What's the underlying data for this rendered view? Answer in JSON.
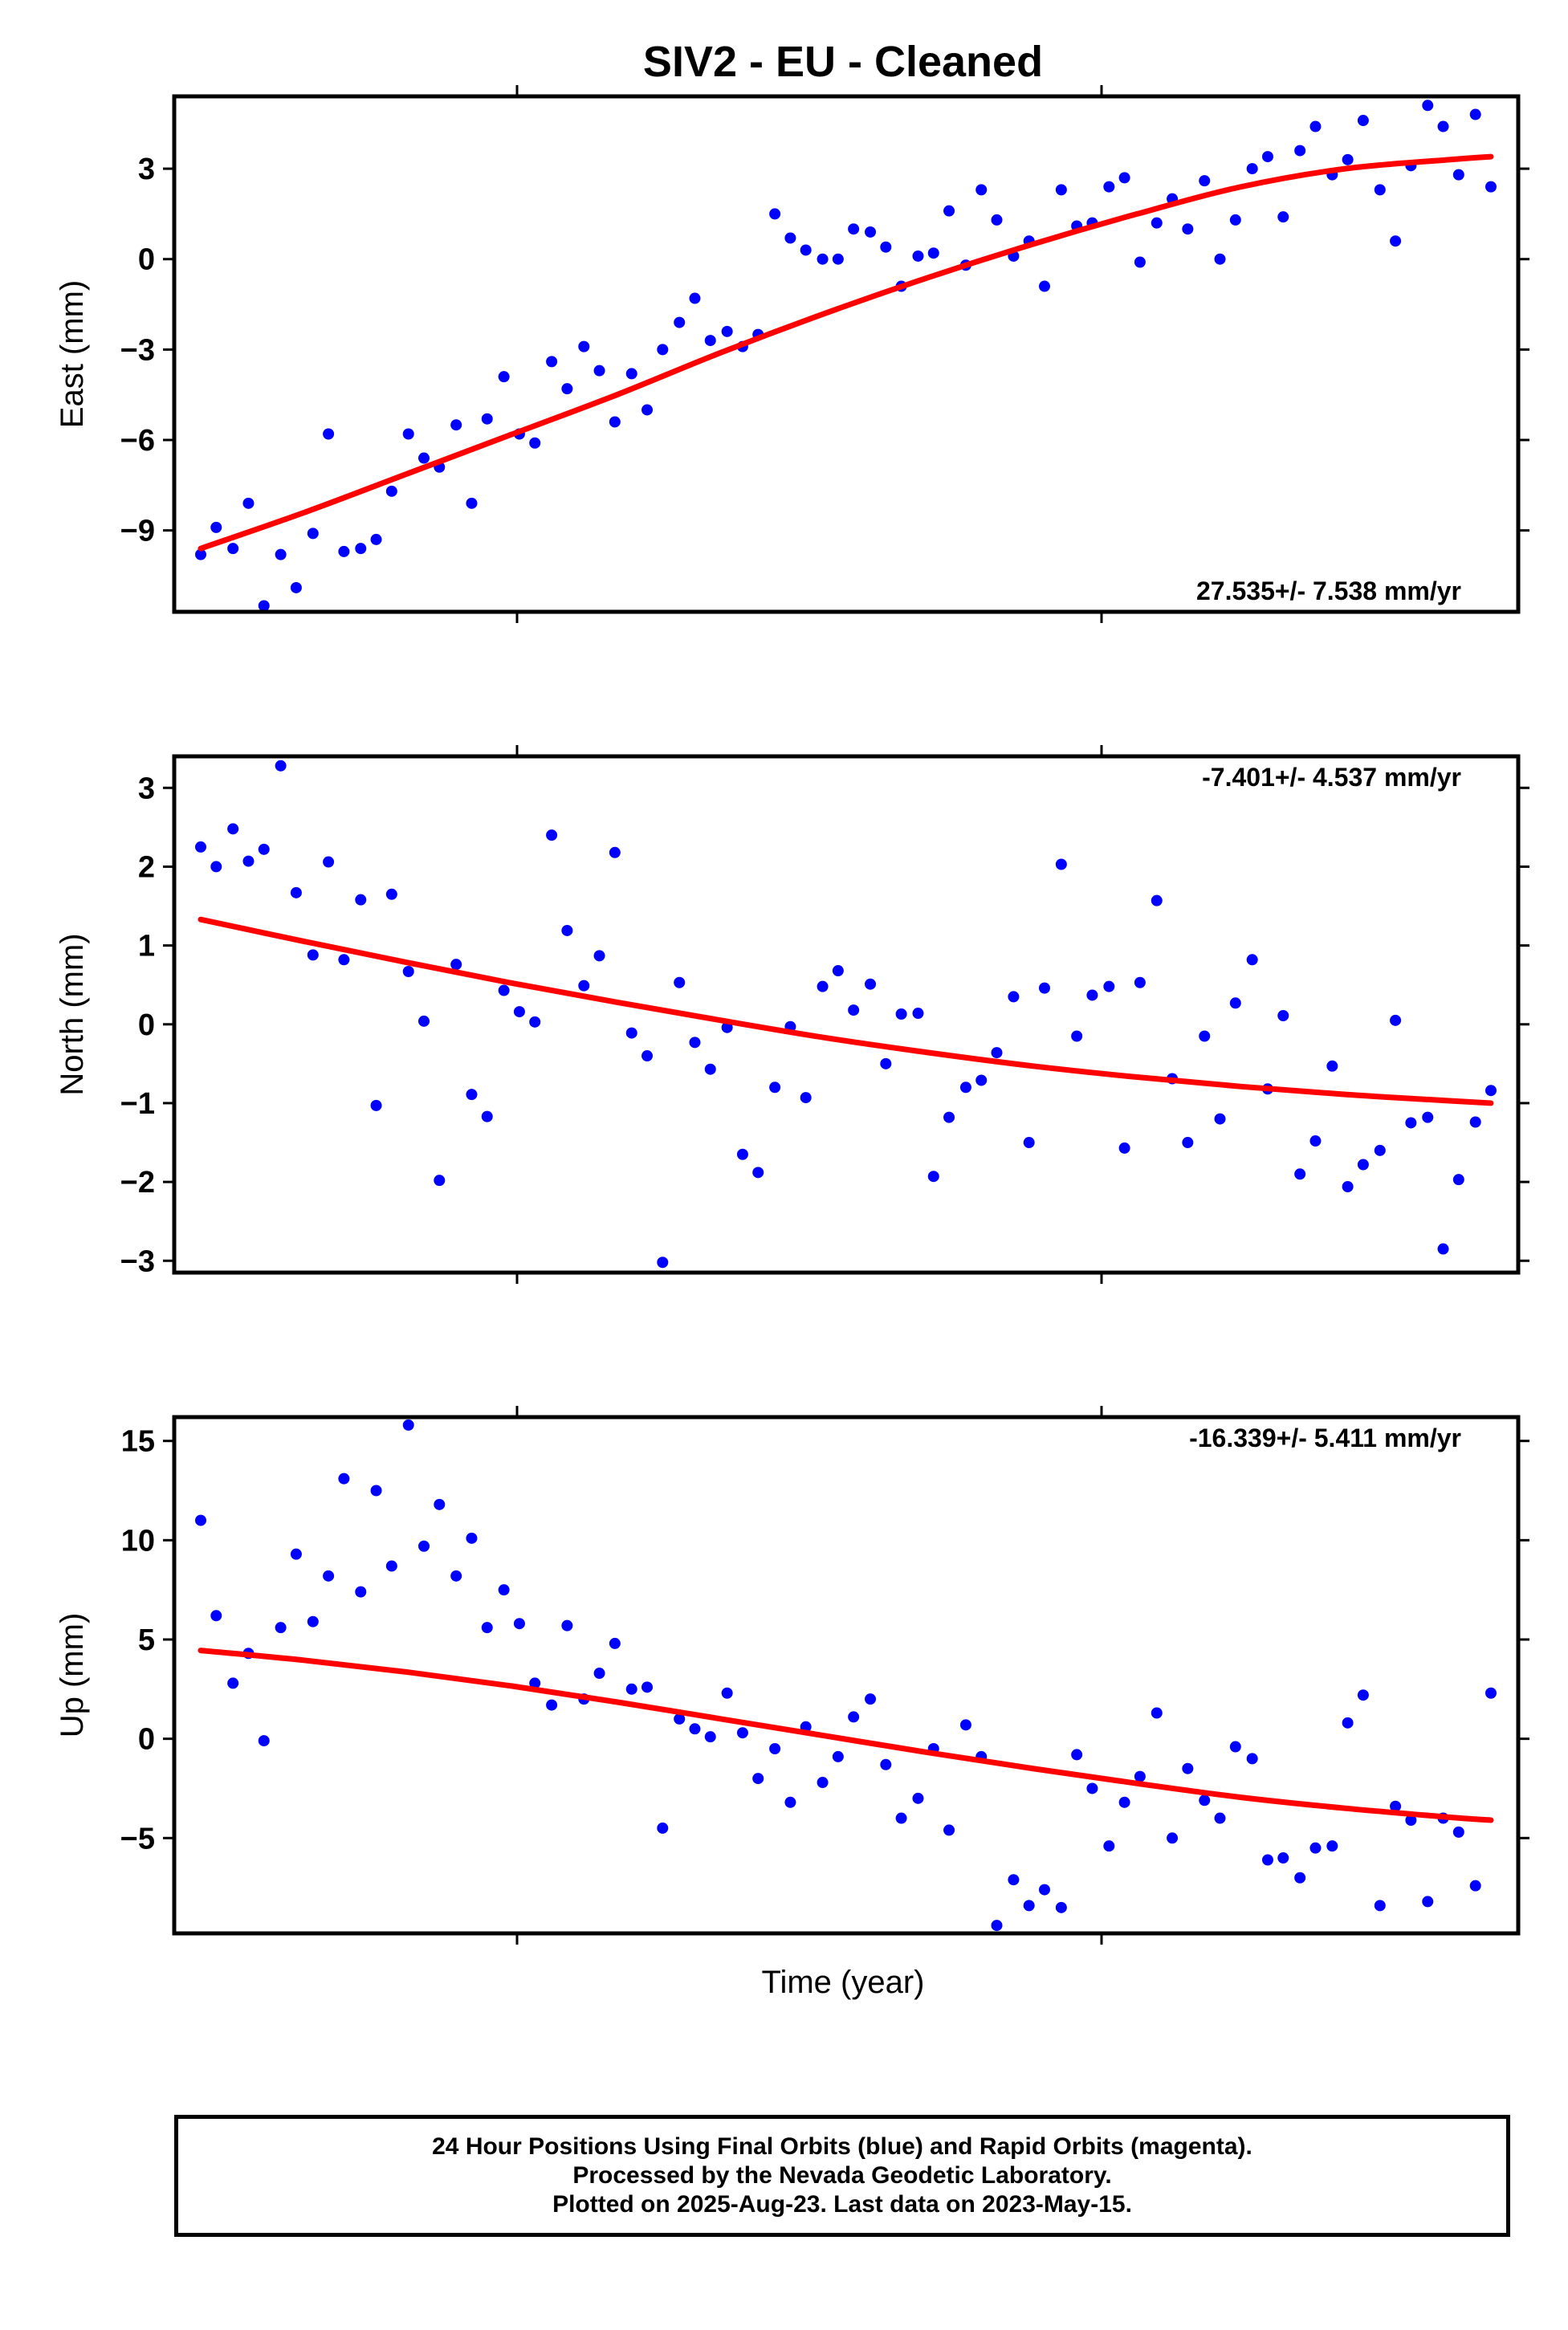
{
  "title": "SIV2  - EU - Cleaned",
  "xlabel": "Time (year)",
  "colors": {
    "final_orbits": "#0000ff",
    "rapid_orbits": "#ff00ff",
    "fit": "#ff0000"
  },
  "footer": {
    "line1": "24 Hour Positions Using Final Orbits (blue) and Rapid Orbits (magenta).",
    "line2": "Processed by the Nevada Geodetic Laboratory.",
    "line3": "Plotted on 2025-Aug-23. Last data on 2023-May-15."
  },
  "chart_data": [
    {
      "type": "scatter",
      "ylabel": "East (mm)",
      "ylim": [
        -11.7,
        5.4
      ],
      "yticks": [
        -9,
        -6,
        -3,
        0,
        3
      ],
      "ytick_labels": [
        "−9",
        "−6",
        "−3",
        "0",
        "3"
      ],
      "rate_label": "27.535+/- 7.538 mm/yr",
      "rate_position": "bottom-right",
      "fit_curve": [
        [
          0,
          -9.6
        ],
        [
          0.1,
          -8.4
        ],
        [
          0.2,
          -7.1
        ],
        [
          0.3,
          -5.8
        ],
        [
          0.4,
          -4.5
        ],
        [
          0.5,
          -3.1
        ],
        [
          0.6,
          -1.8
        ],
        [
          0.7,
          -0.6
        ],
        [
          0.8,
          0.5
        ],
        [
          0.9,
          1.5
        ],
        [
          1.0,
          2.4
        ],
        [
          1.1,
          3.0
        ],
        [
          1.2,
          3.3
        ],
        [
          1.24,
          3.4
        ]
      ],
      "values": [
        [
          0.0,
          -9.8
        ],
        [
          0.012,
          -8.9
        ],
        [
          0.025,
          -9.6
        ],
        [
          0.037,
          -8.1
        ],
        [
          0.049,
          -11.5
        ],
        [
          0.062,
          -9.8
        ],
        [
          0.074,
          -10.9
        ],
        [
          0.087,
          -9.1
        ],
        [
          0.099,
          -5.8
        ],
        [
          0.111,
          -9.7
        ],
        [
          0.124,
          -9.6
        ],
        [
          0.136,
          -9.3
        ],
        [
          0.148,
          -7.7
        ],
        [
          0.161,
          -5.8
        ],
        [
          0.173,
          -6.6
        ],
        [
          0.185,
          -6.9
        ],
        [
          0.198,
          -5.5
        ],
        [
          0.21,
          -8.1
        ],
        [
          0.222,
          -5.3
        ],
        [
          0.235,
          -3.9
        ],
        [
          0.247,
          -5.8
        ],
        [
          0.259,
          -6.1
        ],
        [
          0.272,
          -3.4
        ],
        [
          0.284,
          -4.3
        ],
        [
          0.297,
          -2.9
        ],
        [
          0.309,
          -3.7
        ],
        [
          0.321,
          -5.4
        ],
        [
          0.334,
          -3.8
        ],
        [
          0.346,
          -5.0
        ],
        [
          0.358,
          -3.0
        ],
        [
          0.371,
          -2.1
        ],
        [
          0.383,
          -1.3
        ],
        [
          0.395,
          -2.7
        ],
        [
          0.408,
          -2.4
        ],
        [
          0.42,
          -2.9
        ],
        [
          0.432,
          -2.5
        ],
        [
          0.445,
          1.5
        ],
        [
          0.457,
          0.7
        ],
        [
          0.469,
          0.3
        ],
        [
          0.482,
          0.0
        ],
        [
          0.494,
          0.0
        ],
        [
          0.506,
          1.0
        ],
        [
          0.519,
          0.9
        ],
        [
          0.531,
          0.4
        ],
        [
          0.543,
          -0.9
        ],
        [
          0.556,
          0.1
        ],
        [
          0.568,
          0.2
        ],
        [
          0.58,
          1.6
        ],
        [
          0.593,
          -0.2
        ],
        [
          0.605,
          2.3
        ],
        [
          0.617,
          1.3
        ],
        [
          0.63,
          0.1
        ],
        [
          0.642,
          0.6
        ],
        [
          0.654,
          -0.9
        ],
        [
          0.667,
          2.3
        ],
        [
          0.679,
          1.1
        ],
        [
          0.691,
          1.2
        ],
        [
          0.704,
          2.4
        ],
        [
          0.716,
          2.7
        ],
        [
          0.728,
          -0.1
        ],
        [
          0.741,
          1.2
        ],
        [
          0.753,
          2.0
        ],
        [
          0.765,
          1.0
        ],
        [
          0.778,
          2.6
        ],
        [
          0.79,
          0.0
        ],
        [
          0.802,
          1.3
        ],
        [
          0.815,
          3.0
        ],
        [
          0.827,
          3.4
        ],
        [
          0.839,
          1.4
        ],
        [
          0.852,
          3.6
        ],
        [
          0.864,
          4.4
        ],
        [
          0.877,
          2.8
        ],
        [
          0.889,
          3.3
        ],
        [
          0.901,
          4.6
        ],
        [
          0.914,
          2.3
        ],
        [
          0.926,
          0.6
        ],
        [
          0.938,
          3.1
        ],
        [
          0.951,
          5.1
        ],
        [
          0.963,
          4.4
        ],
        [
          0.975,
          2.8
        ],
        [
          0.988,
          4.8
        ],
        [
          1.0,
          2.4
        ]
      ]
    },
    {
      "type": "scatter",
      "ylabel": "North (mm)",
      "ylim": [
        -3.15,
        3.4
      ],
      "yticks": [
        -3,
        -2,
        -1,
        0,
        1,
        2,
        3
      ],
      "ytick_labels": [
        "−3",
        "−2",
        "−1",
        "0",
        "1",
        "2",
        "3"
      ],
      "rate_label": "-7.401+/- 4.537 mm/yr",
      "rate_position": "top-right",
      "fit_curve": [
        [
          0,
          1.33
        ],
        [
          0.1,
          1.05
        ],
        [
          0.2,
          0.78
        ],
        [
          0.3,
          0.52
        ],
        [
          0.4,
          0.28
        ],
        [
          0.5,
          0.05
        ],
        [
          0.6,
          -0.17
        ],
        [
          0.7,
          -0.36
        ],
        [
          0.8,
          -0.53
        ],
        [
          0.9,
          -0.67
        ],
        [
          1.0,
          -0.79
        ],
        [
          1.1,
          -0.89
        ],
        [
          1.2,
          -0.97
        ],
        [
          1.24,
          -1.0
        ]
      ],
      "values": [
        [
          0.0,
          2.25
        ],
        [
          0.012,
          2.0
        ],
        [
          0.025,
          2.48
        ],
        [
          0.037,
          2.07
        ],
        [
          0.049,
          2.22
        ],
        [
          0.062,
          3.28
        ],
        [
          0.074,
          1.67
        ],
        [
          0.087,
          0.88
        ],
        [
          0.099,
          2.06
        ],
        [
          0.111,
          0.82
        ],
        [
          0.124,
          1.58
        ],
        [
          0.136,
          -1.03
        ],
        [
          0.148,
          1.65
        ],
        [
          0.161,
          0.67
        ],
        [
          0.173,
          0.04
        ],
        [
          0.185,
          -1.98
        ],
        [
          0.198,
          0.76
        ],
        [
          0.21,
          -0.89
        ],
        [
          0.222,
          -1.17
        ],
        [
          0.235,
          0.43
        ],
        [
          0.247,
          0.16
        ],
        [
          0.259,
          0.03
        ],
        [
          0.272,
          2.4
        ],
        [
          0.284,
          1.19
        ],
        [
          0.297,
          0.49
        ],
        [
          0.309,
          0.87
        ],
        [
          0.321,
          2.18
        ],
        [
          0.334,
          -0.11
        ],
        [
          0.346,
          -0.4
        ],
        [
          0.358,
          -3.02
        ],
        [
          0.371,
          0.53
        ],
        [
          0.383,
          -0.23
        ],
        [
          0.395,
          -0.57
        ],
        [
          0.408,
          -0.04
        ],
        [
          0.42,
          -1.65
        ],
        [
          0.432,
          -1.88
        ],
        [
          0.445,
          -0.8
        ],
        [
          0.457,
          -0.03
        ],
        [
          0.469,
          -0.93
        ],
        [
          0.482,
          0.48
        ],
        [
          0.494,
          0.68
        ],
        [
          0.506,
          0.18
        ],
        [
          0.519,
          0.51
        ],
        [
          0.531,
          -0.5
        ],
        [
          0.543,
          0.13
        ],
        [
          0.556,
          0.14
        ],
        [
          0.568,
          -1.93
        ],
        [
          0.58,
          -1.18
        ],
        [
          0.593,
          -0.8
        ],
        [
          0.605,
          -0.71
        ],
        [
          0.617,
          -0.36
        ],
        [
          0.63,
          0.35
        ],
        [
          0.642,
          -1.5
        ],
        [
          0.654,
          0.46
        ],
        [
          0.667,
          2.03
        ],
        [
          0.679,
          -0.15
        ],
        [
          0.691,
          0.37
        ],
        [
          0.704,
          0.48
        ],
        [
          0.716,
          -1.57
        ],
        [
          0.728,
          0.53
        ],
        [
          0.741,
          1.57
        ],
        [
          0.753,
          -0.69
        ],
        [
          0.765,
          -1.5
        ],
        [
          0.778,
          -0.15
        ],
        [
          0.79,
          -1.2
        ],
        [
          0.802,
          0.27
        ],
        [
          0.815,
          0.82
        ],
        [
          0.827,
          -0.82
        ],
        [
          0.839,
          0.11
        ],
        [
          0.852,
          -1.9
        ],
        [
          0.864,
          -1.48
        ],
        [
          0.877,
          -0.53
        ],
        [
          0.889,
          -2.06
        ],
        [
          0.901,
          -1.78
        ],
        [
          0.914,
          -1.6
        ],
        [
          0.926,
          0.05
        ],
        [
          0.938,
          -1.25
        ],
        [
          0.951,
          -1.18
        ],
        [
          0.963,
          -2.85
        ],
        [
          0.975,
          -1.97
        ],
        [
          0.988,
          -1.24
        ],
        [
          1.0,
          -0.84
        ]
      ]
    },
    {
      "type": "scatter",
      "ylabel": "Up (mm)",
      "ylim": [
        -9.8,
        16.2
      ],
      "yticks": [
        -5,
        0,
        5,
        10,
        15
      ],
      "ytick_labels": [
        "−5",
        "0",
        "5",
        "10",
        "15"
      ],
      "rate_label": "-16.339+/- 5.411 mm/yr",
      "rate_position": "top-right",
      "fit_curve": [
        [
          0,
          4.45
        ],
        [
          0.1,
          3.95
        ],
        [
          0.2,
          3.35
        ],
        [
          0.3,
          2.65
        ],
        [
          0.4,
          1.85
        ],
        [
          0.5,
          1.0
        ],
        [
          0.6,
          0.15
        ],
        [
          0.7,
          -0.7
        ],
        [
          0.8,
          -1.5
        ],
        [
          0.9,
          -2.25
        ],
        [
          1.0,
          -2.95
        ],
        [
          1.1,
          -3.5
        ],
        [
          1.2,
          -3.95
        ],
        [
          1.24,
          -4.1
        ]
      ],
      "values": [
        [
          0.0,
          11.0
        ],
        [
          0.012,
          6.2
        ],
        [
          0.025,
          2.8
        ],
        [
          0.037,
          4.3
        ],
        [
          0.049,
          -0.1
        ],
        [
          0.062,
          5.6
        ],
        [
          0.074,
          9.3
        ],
        [
          0.087,
          5.9
        ],
        [
          0.099,
          8.2
        ],
        [
          0.111,
          13.1
        ],
        [
          0.124,
          7.4
        ],
        [
          0.136,
          12.5
        ],
        [
          0.148,
          8.7
        ],
        [
          0.161,
          15.8
        ],
        [
          0.173,
          9.7
        ],
        [
          0.185,
          11.8
        ],
        [
          0.198,
          8.2
        ],
        [
          0.21,
          10.1
        ],
        [
          0.222,
          5.6
        ],
        [
          0.235,
          7.5
        ],
        [
          0.247,
          5.8
        ],
        [
          0.259,
          2.8
        ],
        [
          0.272,
          1.7
        ],
        [
          0.284,
          5.7
        ],
        [
          0.297,
          2.0
        ],
        [
          0.309,
          3.3
        ],
        [
          0.321,
          4.8
        ],
        [
          0.334,
          2.5
        ],
        [
          0.346,
          2.6
        ],
        [
          0.358,
          -4.5
        ],
        [
          0.371,
          1.0
        ],
        [
          0.383,
          0.5
        ],
        [
          0.395,
          0.1
        ],
        [
          0.408,
          2.3
        ],
        [
          0.42,
          0.3
        ],
        [
          0.432,
          -2.0
        ],
        [
          0.445,
          -0.5
        ],
        [
          0.457,
          -3.2
        ],
        [
          0.469,
          0.6
        ],
        [
          0.482,
          -2.2
        ],
        [
          0.494,
          -0.9
        ],
        [
          0.506,
          1.1
        ],
        [
          0.519,
          2.0
        ],
        [
          0.531,
          -1.3
        ],
        [
          0.543,
          -4.0
        ],
        [
          0.556,
          -3.0
        ],
        [
          0.568,
          -0.5
        ],
        [
          0.58,
          -4.6
        ],
        [
          0.593,
          0.7
        ],
        [
          0.605,
          -0.9
        ],
        [
          0.617,
          -9.4
        ],
        [
          0.63,
          -7.1
        ],
        [
          0.642,
          -8.4
        ],
        [
          0.654,
          -7.6
        ],
        [
          0.667,
          -8.5
        ],
        [
          0.679,
          -0.8
        ],
        [
          0.691,
          -2.5
        ],
        [
          0.704,
          -5.4
        ],
        [
          0.716,
          -3.2
        ],
        [
          0.728,
          -1.9
        ],
        [
          0.741,
          1.3
        ],
        [
          0.753,
          -5.0
        ],
        [
          0.765,
          -1.5
        ],
        [
          0.778,
          -3.1
        ],
        [
          0.79,
          -4.0
        ],
        [
          0.802,
          -0.4
        ],
        [
          0.815,
          -1.0
        ],
        [
          0.827,
          -6.1
        ],
        [
          0.839,
          -6.0
        ],
        [
          0.852,
          -7.0
        ],
        [
          0.864,
          -5.5
        ],
        [
          0.877,
          -5.4
        ],
        [
          0.889,
          0.8
        ],
        [
          0.901,
          2.2
        ],
        [
          0.914,
          -8.4
        ],
        [
          0.926,
          -3.4
        ],
        [
          0.938,
          -4.1
        ],
        [
          0.951,
          -8.2
        ],
        [
          0.963,
          -4.0
        ],
        [
          0.975,
          -4.7
        ],
        [
          0.988,
          -7.4
        ],
        [
          1.0,
          2.3
        ]
      ]
    }
  ]
}
